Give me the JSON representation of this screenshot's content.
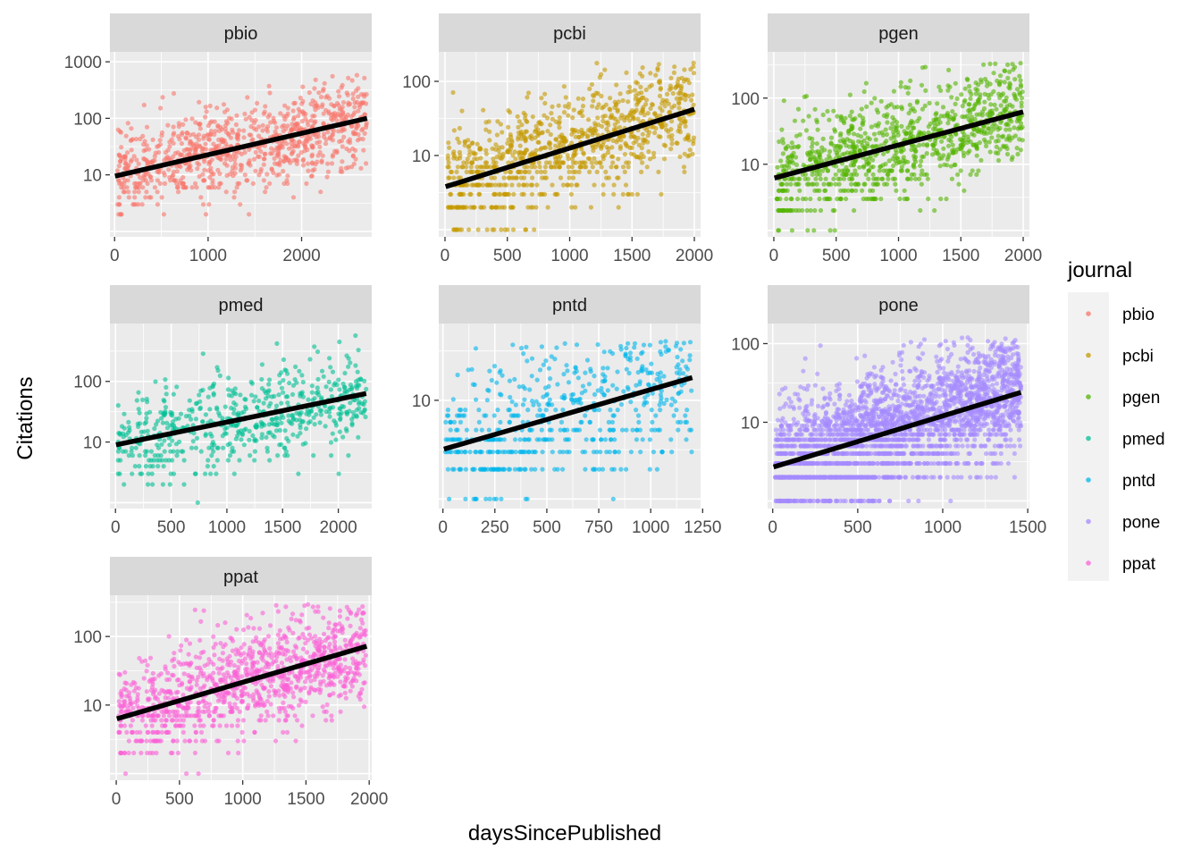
{
  "chart_data": {
    "type": "scatter",
    "layout": "facet_wrap",
    "facet_ncol": 3,
    "xlabel": "daysSincePublished",
    "ylabel": "Citations",
    "y_scale": "log10",
    "legend": {
      "title": "journal",
      "position": "right",
      "items": [
        {
          "name": "pbio",
          "color": "#F8766D"
        },
        {
          "name": "pcbi",
          "color": "#C49A00"
        },
        {
          "name": "pgen",
          "color": "#53B400"
        },
        {
          "name": "pmed",
          "color": "#00C094"
        },
        {
          "name": "pntd",
          "color": "#00B6EB"
        },
        {
          "name": "pone",
          "color": "#A58AFF"
        },
        {
          "name": "ppat",
          "color": "#FB61D7"
        }
      ]
    },
    "trend_color": "#000000",
    "panel_background": "#EBEBEB",
    "strip_background": "#D9D9D9",
    "facets": [
      {
        "journal": "pbio",
        "color": "#F8766D",
        "xlim": [
          -50,
          2750
        ],
        "ylim": [
          0.8,
          1500
        ],
        "x_ticks": [
          0,
          1000,
          2000
        ],
        "x_tick_labels": [
          "0",
          "1000",
          "2000"
        ],
        "y_ticks": [
          10,
          100,
          1000
        ],
        "y_tick_labels": [
          "10",
          "100",
          "1000"
        ],
        "y_floor": 1,
        "y_peak_range": [
          2,
          700
        ],
        "n_points": 900,
        "trend": {
          "x": [
            0,
            2700
          ],
          "y": [
            9.5,
            100
          ]
        }
      },
      {
        "journal": "pcbi",
        "color": "#C49A00",
        "xlim": [
          -50,
          2050
        ],
        "ylim": [
          0.8,
          250
        ],
        "x_ticks": [
          0,
          500,
          1000,
          1500,
          2000
        ],
        "x_tick_labels": [
          "0",
          "500",
          "1000",
          "1500",
          "2000"
        ],
        "y_ticks": [
          10,
          100
        ],
        "y_tick_labels": [
          "10",
          "100"
        ],
        "y_floor": 1,
        "y_peak_range": [
          2,
          180
        ],
        "n_points": 950,
        "trend": {
          "x": [
            0,
            2000
          ],
          "y": [
            3.8,
            42
          ]
        }
      },
      {
        "journal": "pgen",
        "color": "#53B400",
        "xlim": [
          -50,
          2050
        ],
        "ylim": [
          0.8,
          500
        ],
        "x_ticks": [
          0,
          500,
          1000,
          1500,
          2000
        ],
        "x_tick_labels": [
          "0",
          "500",
          "1000",
          "1500",
          "2000"
        ],
        "y_ticks": [
          10,
          100
        ],
        "y_tick_labels": [
          "10",
          "100"
        ],
        "y_floor": 1,
        "y_peak_range": [
          2,
          350
        ],
        "n_points": 1000,
        "trend": {
          "x": [
            0,
            2000
          ],
          "y": [
            6.2,
            62
          ]
        }
      },
      {
        "journal": "pmed",
        "color": "#00C094",
        "xlim": [
          -50,
          2300
        ],
        "ylim": [
          0.8,
          900
        ],
        "x_ticks": [
          0,
          500,
          1000,
          1500,
          2000
        ],
        "x_tick_labels": [
          "0",
          "500",
          "1000",
          "1500",
          "2000"
        ],
        "y_ticks": [
          10,
          100
        ],
        "y_tick_labels": [
          "10",
          "100"
        ],
        "y_floor": 1,
        "y_peak_range": [
          2,
          600
        ],
        "n_points": 600,
        "trend": {
          "x": [
            0,
            2250
          ],
          "y": [
            9,
            63
          ]
        }
      },
      {
        "journal": "pntd",
        "color": "#00B6EB",
        "xlim": [
          -20,
          1240
        ],
        "ylim": [
          0.8,
          60
        ],
        "x_ticks": [
          0,
          250,
          500,
          750,
          1000,
          1250
        ],
        "x_tick_labels": [
          "0",
          "250",
          "500",
          "750",
          "1000",
          "1250"
        ],
        "y_ticks": [
          10
        ],
        "y_tick_labels": [
          "10"
        ],
        "y_floor": 1,
        "y_peak_range": [
          2,
          40
        ],
        "n_points": 550,
        "trend": {
          "x": [
            0,
            1200
          ],
          "y": [
            3.2,
            17
          ]
        }
      },
      {
        "journal": "pone",
        "color": "#A58AFF",
        "xlim": [
          -30,
          1510
        ],
        "ylim": [
          0.8,
          180
        ],
        "x_ticks": [
          0,
          500,
          1000,
          1500
        ],
        "x_tick_labels": [
          "0",
          "500",
          "1000",
          "1500"
        ],
        "y_ticks": [
          10,
          100
        ],
        "y_tick_labels": [
          "10",
          "100"
        ],
        "y_floor": 1,
        "y_peak_range": [
          2,
          120
        ],
        "n_points": 2600,
        "trend": {
          "x": [
            0,
            1460
          ],
          "y": [
            2.7,
            24
          ]
        }
      },
      {
        "journal": "ppat",
        "color": "#FB61D7",
        "xlim": [
          -50,
          2020
        ],
        "ylim": [
          0.8,
          400
        ],
        "x_ticks": [
          0,
          500,
          1000,
          1500,
          2000
        ],
        "x_tick_labels": [
          "0",
          "500",
          "1000",
          "1500",
          "2000"
        ],
        "y_ticks": [
          10,
          100
        ],
        "y_tick_labels": [
          "10",
          "100"
        ],
        "y_floor": 1,
        "y_peak_range": [
          2,
          300
        ],
        "n_points": 1100,
        "trend": {
          "x": [
            0,
            1980
          ],
          "y": [
            6.3,
            72
          ]
        }
      }
    ]
  }
}
